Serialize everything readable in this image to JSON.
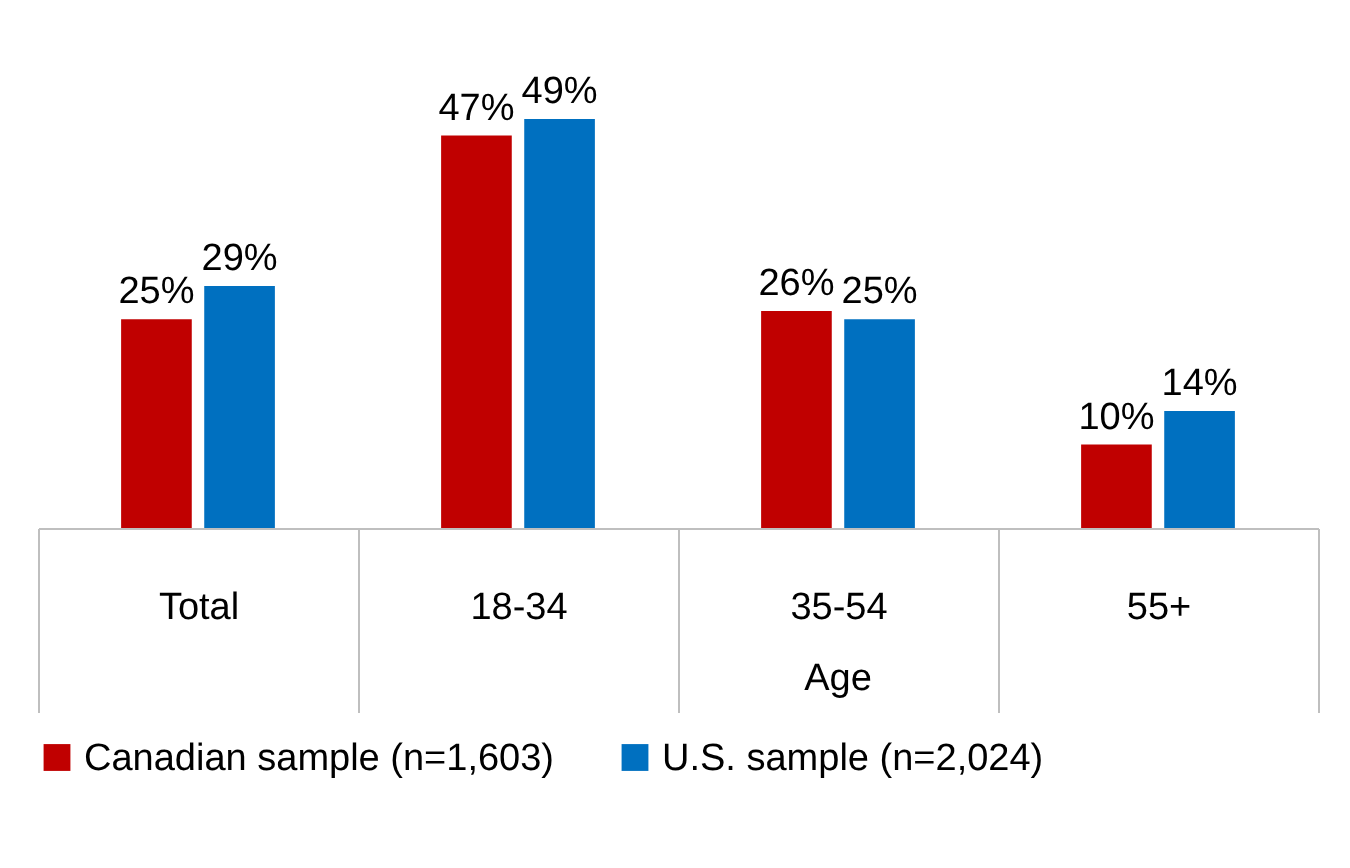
{
  "chart_data": {
    "type": "bar",
    "categories": [
      "Total",
      "18-34",
      "35-54",
      "55+"
    ],
    "series": [
      {
        "name": "Canadian sample (n=1,603)",
        "color": "#c00000",
        "values": [
          25,
          47,
          26,
          10
        ],
        "value_labels": [
          "25%",
          "47%",
          "26%",
          "10%"
        ]
      },
      {
        "name": "U.S. sample (n=2,024)",
        "color": "#0070c0",
        "values": [
          29,
          49,
          25,
          14
        ],
        "value_labels": [
          "29%",
          "49%",
          "25%",
          "14%"
        ]
      }
    ],
    "legend": "bottom",
    "annotations": [
      "Age"
    ]
  }
}
